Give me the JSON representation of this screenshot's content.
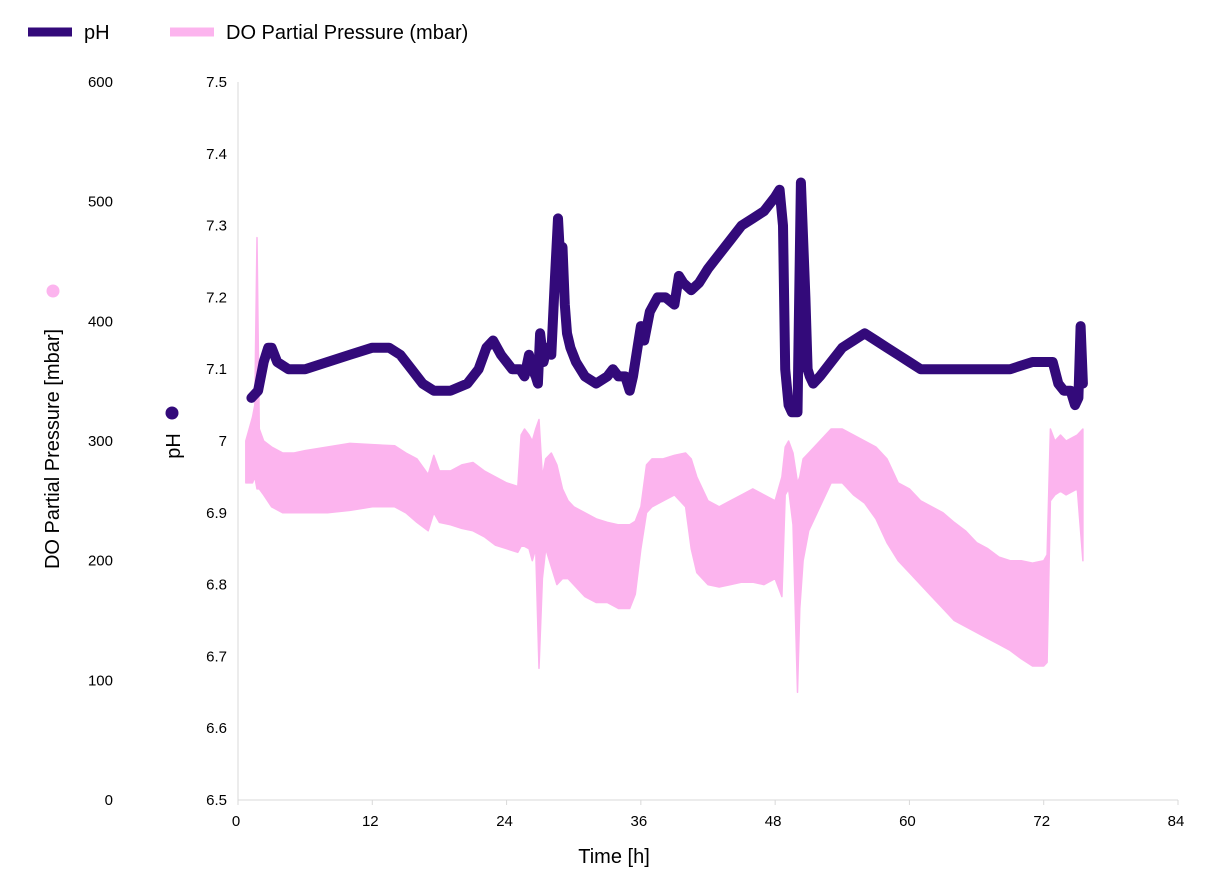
{
  "chart_data": {
    "type": "line",
    "x_axis": {
      "label": "Time [h]",
      "range": [
        0,
        84
      ],
      "ticks": [
        0,
        12,
        24,
        36,
        48,
        60,
        72,
        84
      ],
      "tick_labels": [
        "0",
        "12",
        "24",
        "36",
        "48",
        "60",
        "72",
        "84"
      ]
    },
    "y_axis_left": {
      "label": "DO Partial Pressure [mbar]",
      "range": [
        0,
        600
      ],
      "ticks": [
        0,
        100,
        200,
        300,
        400,
        500,
        600
      ],
      "tick_labels": [
        "0",
        "100",
        "200",
        "300",
        "400",
        "500",
        "600"
      ]
    },
    "y_axis_right": {
      "label": "pH",
      "range": [
        6.5,
        7.5
      ],
      "ticks": [
        6.5,
        6.6,
        6.7,
        6.8,
        6.9,
        7,
        7.1,
        7.2,
        7.3,
        7.4,
        7.5
      ],
      "tick_labels": [
        "6.5",
        "6.6",
        "6.7",
        "6.8",
        "6.9",
        "7",
        "7.1",
        "7.2",
        "7.3",
        "7.4",
        "7.5"
      ]
    },
    "grid": false,
    "legend": {
      "position": "top-left",
      "entries": [
        {
          "name": "pH",
          "color": "#330a7a"
        },
        {
          "name": "DO Partial Pressure (mbar)",
          "color": "#fcb4ee"
        }
      ]
    },
    "series": [
      {
        "name": "pH",
        "color": "#330a7a",
        "axis": "pH",
        "x": [
          1.2,
          1.8,
          2.3,
          2.7,
          3.0,
          3.5,
          4.5,
          6,
          8,
          10,
          12,
          13.5,
          14.5,
          15.5,
          16.5,
          17.5,
          19,
          20.5,
          21.5,
          22.2,
          22.8,
          23.5,
          24.5,
          25.2,
          25.6,
          26.0,
          26.3,
          26.6,
          26.8,
          27.0,
          27.3,
          27.6,
          28.0,
          28.3,
          28.6,
          28.8,
          29.0,
          29.2,
          29.4,
          29.7,
          30.2,
          31,
          32,
          33,
          33.5,
          34,
          34.6,
          35,
          35.3,
          35.7,
          36.0,
          36.3,
          36.8,
          37.5,
          38.2,
          39.0,
          39.4,
          39.8,
          40.5,
          41.2,
          42,
          43,
          44,
          45,
          46,
          47,
          48.0,
          48.4,
          48.7,
          48.9,
          49.2,
          49.5,
          50.0,
          50.3,
          50.7,
          50.9,
          51.1,
          51.4,
          52,
          53,
          54,
          55,
          56,
          57,
          58,
          59,
          60,
          61,
          63,
          65,
          67,
          69,
          71,
          72.2,
          72.8,
          73.3,
          73.8,
          74.4,
          74.8,
          75.1,
          75.3,
          75.5
        ],
        "values": [
          7.06,
          7.07,
          7.11,
          7.13,
          7.13,
          7.11,
          7.1,
          7.1,
          7.11,
          7.12,
          7.13,
          7.13,
          7.12,
          7.1,
          7.08,
          7.07,
          7.07,
          7.08,
          7.1,
          7.13,
          7.14,
          7.12,
          7.1,
          7.1,
          7.09,
          7.12,
          7.1,
          7.09,
          7.08,
          7.15,
          7.11,
          7.13,
          7.12,
          7.22,
          7.31,
          7.25,
          7.27,
          7.19,
          7.15,
          7.13,
          7.11,
          7.09,
          7.08,
          7.09,
          7.1,
          7.09,
          7.09,
          7.07,
          7.09,
          7.13,
          7.16,
          7.14,
          7.18,
          7.2,
          7.2,
          7.19,
          7.23,
          7.22,
          7.21,
          7.22,
          7.24,
          7.26,
          7.28,
          7.3,
          7.31,
          7.32,
          7.34,
          7.35,
          7.3,
          7.1,
          7.05,
          7.04,
          7.04,
          7.36,
          7.2,
          7.1,
          7.09,
          7.08,
          7.09,
          7.11,
          7.13,
          7.14,
          7.15,
          7.14,
          7.13,
          7.12,
          7.11,
          7.1,
          7.1,
          7.1,
          7.1,
          7.1,
          7.11,
          7.11,
          7.11,
          7.08,
          7.07,
          7.07,
          7.05,
          7.06,
          7.16,
          7.08
        ]
      },
      {
        "name": "DO Partial Pressure (mbar)",
        "color": "#fcb4ee",
        "axis": "mbar",
        "x": [
          0.7,
          1.3,
          1.5,
          1.7,
          1.9,
          2.3,
          3,
          4,
          5,
          6,
          8,
          10,
          12,
          14,
          15,
          16,
          17,
          17.5,
          18,
          19,
          20,
          21,
          22,
          23,
          24,
          25,
          25.3,
          25.6,
          26,
          26.3,
          26.6,
          26.9,
          27.2,
          27.5,
          28,
          28.5,
          29,
          29.5,
          30,
          31,
          32,
          33,
          34,
          35,
          35.5,
          36,
          36.5,
          37,
          38,
          39,
          40,
          40.5,
          41,
          42,
          43,
          44,
          45,
          46,
          47,
          48,
          48.6,
          48.9,
          49.2,
          49.6,
          50.0,
          50.2,
          50.5,
          51,
          52,
          53,
          54,
          55,
          56,
          57,
          58,
          59,
          60,
          61,
          62,
          63,
          64,
          65,
          66,
          67,
          68,
          69,
          70,
          71,
          72,
          72.3,
          72.6,
          73,
          73.5,
          74,
          75,
          75.5
        ],
        "upper": [
          300,
          320,
          330,
          470,
          310,
          300,
          295,
          290,
          290,
          292,
          295,
          298,
          297,
          296,
          290,
          285,
          272,
          288,
          275,
          275,
          280,
          282,
          275,
          270,
          265,
          262,
          305,
          310,
          305,
          300,
          310,
          318,
          270,
          285,
          290,
          280,
          260,
          250,
          245,
          240,
          235,
          232,
          230,
          230,
          233,
          245,
          280,
          285,
          285,
          288,
          290,
          285,
          270,
          250,
          245,
          250,
          255,
          260,
          255,
          250,
          270,
          295,
          300,
          290,
          265,
          270,
          285,
          290,
          300,
          310,
          310,
          305,
          300,
          295,
          285,
          265,
          260,
          250,
          245,
          240,
          232,
          225,
          215,
          210,
          203,
          200,
          200,
          198,
          200,
          205,
          310,
          300,
          305,
          300,
          305,
          310
        ],
        "lower": [
          265,
          265,
          270,
          260,
          260,
          255,
          245,
          240,
          240,
          240,
          240,
          242,
          245,
          245,
          240,
          232,
          225,
          240,
          232,
          230,
          227,
          225,
          220,
          213,
          210,
          207,
          212,
          212,
          210,
          200,
          210,
          110,
          185,
          210,
          195,
          180,
          185,
          185,
          180,
          170,
          165,
          165,
          160,
          160,
          172,
          210,
          240,
          245,
          250,
          255,
          245,
          210,
          190,
          180,
          178,
          180,
          182,
          182,
          180,
          185,
          170,
          255,
          260,
          230,
          90,
          160,
          200,
          225,
          245,
          265,
          265,
          255,
          248,
          235,
          215,
          200,
          190,
          180,
          170,
          160,
          150,
          145,
          140,
          135,
          130,
          125,
          118,
          112,
          112,
          115,
          250,
          255,
          258,
          255,
          260,
          200
        ]
      }
    ]
  }
}
